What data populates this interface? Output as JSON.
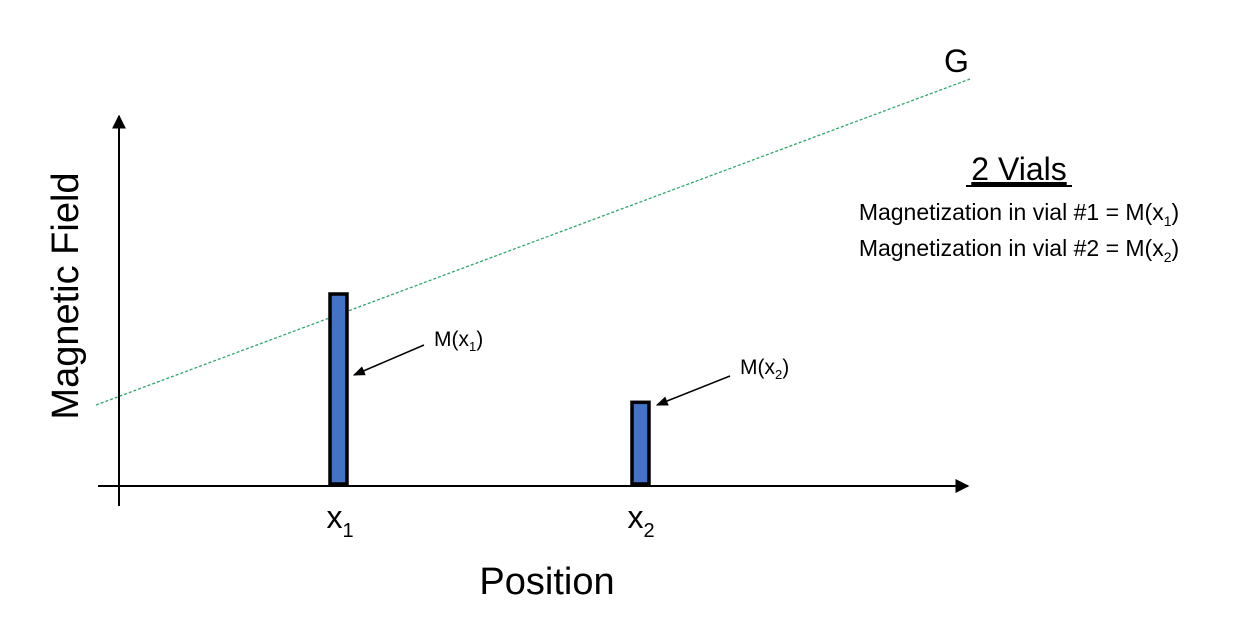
{
  "axes": {
    "y_label": "Magnetic Field",
    "x_label": "Position"
  },
  "gradient_line": {
    "label": "G",
    "color": "#2ea86a"
  },
  "vials": [
    {
      "tick_base": "x",
      "tick_sub": "1",
      "callout_base": "M(x",
      "callout_sub": "1",
      "callout_close": ")",
      "relative_magnetization": 1.0
    },
    {
      "tick_base": "x",
      "tick_sub": "2",
      "callout_base": "M(x",
      "callout_sub": "2",
      "callout_close": ")",
      "relative_magnetization": 0.43
    }
  ],
  "legend": {
    "title": "2 Vials",
    "lines": [
      {
        "text": "Magnetization in vial #1 = M(x",
        "sub": "1",
        "close": ")"
      },
      {
        "text": "Magnetization in vial #2 = M(x",
        "sub": "2",
        "close": ")"
      }
    ]
  },
  "colors": {
    "bar_fill": "#4472c4",
    "bar_stroke": "#000000",
    "axis": "#000000"
  }
}
